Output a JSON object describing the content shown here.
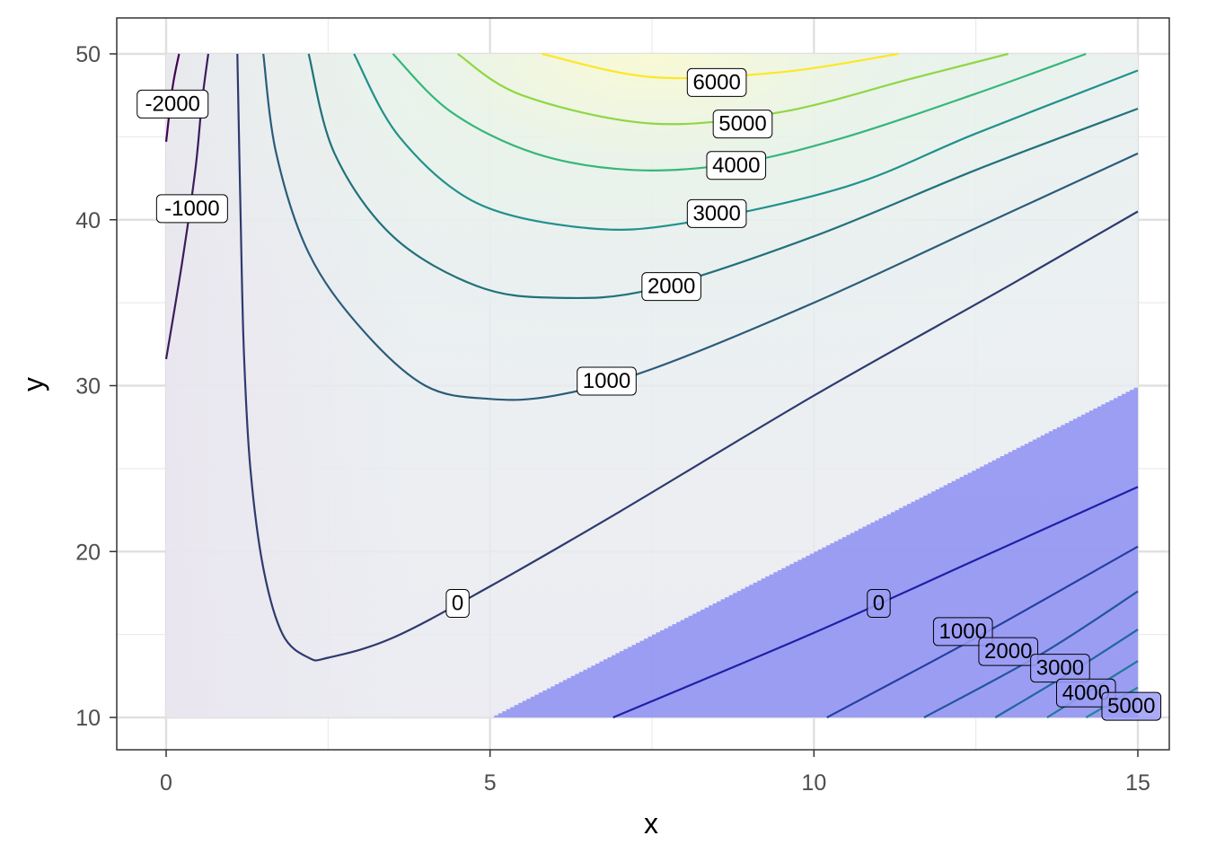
{
  "chart_data": {
    "type": "contour",
    "title": "",
    "xlabel": "x",
    "ylabel": "y",
    "xlim": [
      0,
      15
    ],
    "ylim": [
      10,
      50
    ],
    "x_ticks": [
      {
        "value": 0,
        "label": "0"
      },
      {
        "value": 5,
        "label": "5"
      },
      {
        "value": 10,
        "label": "10"
      },
      {
        "value": 15,
        "label": "15"
      }
    ],
    "y_ticks": [
      {
        "value": 10,
        "label": "10"
      },
      {
        "value": 20,
        "label": "20"
      },
      {
        "value": 30,
        "label": "30"
      },
      {
        "value": 40,
        "label": "40"
      },
      {
        "value": 50,
        "label": "50"
      }
    ],
    "grid": true,
    "legend": "none",
    "shaded_region": {
      "description": "constraint region shaded in blue",
      "color": "#7b7ef2",
      "boundary": [
        [
          5,
          10
        ],
        [
          15,
          30
        ]
      ]
    },
    "contours": [
      {
        "level": -2000,
        "label": "-2000",
        "color": "#440154",
        "points": [
          [
            0.0,
            44.7
          ],
          [
            0.1,
            48.0
          ],
          [
            0.2,
            50.0
          ]
        ],
        "label_at": [
          0.1,
          47.0
        ]
      },
      {
        "level": -1000,
        "label": "-1000",
        "color": "#3b1d5c",
        "points": [
          [
            0.0,
            31.6
          ],
          [
            0.25,
            37.5
          ],
          [
            0.45,
            43.0
          ],
          [
            0.55,
            47.0
          ],
          [
            0.65,
            50.0
          ]
        ],
        "label_at": [
          0.4,
          40.7
        ]
      },
      {
        "level": 0,
        "label": "0",
        "color": "#2f3a6e",
        "points": [
          [
            1.1,
            50.0
          ],
          [
            1.15,
            40.0
          ],
          [
            1.2,
            32.0
          ],
          [
            1.3,
            25.0
          ],
          [
            1.5,
            19.0
          ],
          [
            1.8,
            15.0
          ],
          [
            2.2,
            13.6
          ],
          [
            2.5,
            13.6
          ],
          [
            3.5,
            14.8
          ],
          [
            5.0,
            17.9
          ],
          [
            7.0,
            22.4
          ],
          [
            10.0,
            29.4
          ],
          [
            13.0,
            36.0
          ],
          [
            15.0,
            40.5
          ]
        ],
        "label_at": [
          4.5,
          16.9
        ]
      },
      {
        "level": 0,
        "label": "0",
        "color": "#1f1fa8",
        "points": [
          [
            6.9,
            10.0
          ],
          [
            10.0,
            15.1
          ],
          [
            12.5,
            19.5
          ],
          [
            15.0,
            23.9
          ]
        ],
        "label_at": [
          11.0,
          16.9
        ]
      },
      {
        "level": 1000,
        "label": "1000",
        "color": "#2b5c7a",
        "points": [
          [
            1.5,
            50.0
          ],
          [
            1.7,
            44.0
          ],
          [
            2.2,
            38.0
          ],
          [
            3.0,
            33.5
          ],
          [
            4.0,
            30.0
          ],
          [
            5.0,
            29.2
          ],
          [
            6.0,
            29.4
          ],
          [
            7.5,
            31.0
          ],
          [
            10.0,
            35.0
          ],
          [
            12.5,
            39.5
          ],
          [
            15.0,
            44.0
          ]
        ],
        "label_at": [
          6.8,
          30.3
        ]
      },
      {
        "level": 1000,
        "label": "1000",
        "color": "#2440a0",
        "points": [
          [
            10.2,
            10.0
          ],
          [
            12.5,
            14.8
          ],
          [
            15.0,
            20.3
          ]
        ],
        "label_at": [
          12.3,
          15.2
        ]
      },
      {
        "level": 2000,
        "label": "2000",
        "color": "#21717a",
        "points": [
          [
            2.2,
            50.0
          ],
          [
            2.6,
            44.0
          ],
          [
            3.5,
            39.0
          ],
          [
            4.8,
            36.0
          ],
          [
            6.0,
            35.3
          ],
          [
            7.5,
            35.8
          ],
          [
            10.0,
            39.0
          ],
          [
            12.5,
            43.0
          ],
          [
            15.0,
            46.7
          ]
        ],
        "label_at": [
          7.8,
          36.0
        ]
      },
      {
        "level": 2000,
        "label": "2000",
        "color": "#2255a0",
        "points": [
          [
            11.7,
            10.0
          ],
          [
            13.5,
            13.8
          ],
          [
            15.0,
            17.6
          ]
        ],
        "label_at": [
          13.0,
          14.0
        ]
      },
      {
        "level": 3000,
        "label": "3000",
        "color": "#21918c",
        "points": [
          [
            2.9,
            50.0
          ],
          [
            3.6,
            45.0
          ],
          [
            4.8,
            41.0
          ],
          [
            6.5,
            39.5
          ],
          [
            8.0,
            39.8
          ],
          [
            10.5,
            42.0
          ],
          [
            12.5,
            45.2
          ],
          [
            15.0,
            49.0
          ]
        ],
        "label_at": [
          8.5,
          40.4
        ]
      },
      {
        "level": 3000,
        "label": "3000",
        "color": "#22669e",
        "points": [
          [
            12.8,
            10.0
          ],
          [
            14.0,
            12.8
          ],
          [
            15.0,
            15.3
          ]
        ],
        "label_at": [
          13.8,
          13.0
        ]
      },
      {
        "level": 4000,
        "label": "4000",
        "color": "#35b779",
        "points": [
          [
            3.5,
            50.0
          ],
          [
            4.4,
            46.5
          ],
          [
            5.7,
            44.0
          ],
          [
            7.2,
            43.0
          ],
          [
            8.8,
            43.4
          ],
          [
            10.5,
            45.0
          ],
          [
            12.5,
            47.6
          ],
          [
            14.2,
            50.0
          ]
        ],
        "label_at": [
          8.8,
          43.3
        ]
      },
      {
        "level": 4000,
        "label": "4000",
        "color": "#21779c",
        "points": [
          [
            13.6,
            10.0
          ],
          [
            14.3,
            11.7
          ],
          [
            15.0,
            13.4
          ]
        ],
        "label_at": [
          14.2,
          11.5
        ]
      },
      {
        "level": 5000,
        "label": "5000",
        "color": "#8fd744",
        "points": [
          [
            4.5,
            50.0
          ],
          [
            5.5,
            47.5
          ],
          [
            7.5,
            45.8
          ],
          [
            9.5,
            46.5
          ],
          [
            11.5,
            48.5
          ],
          [
            13.0,
            50.0
          ]
        ],
        "label_at": [
          8.9,
          45.8
        ]
      },
      {
        "level": 5000,
        "label": "5000",
        "color": "#1f889a",
        "points": [
          [
            14.2,
            10.0
          ],
          [
            15.0,
            11.8
          ]
        ],
        "label_at": [
          14.9,
          10.7
        ]
      },
      {
        "level": 6000,
        "label": "6000",
        "color": "#fde725",
        "points": [
          [
            5.8,
            50.0
          ],
          [
            7.5,
            48.6
          ],
          [
            9.5,
            48.9
          ],
          [
            11.3,
            50.0
          ]
        ],
        "label_at": [
          8.5,
          48.3
        ]
      }
    ]
  }
}
